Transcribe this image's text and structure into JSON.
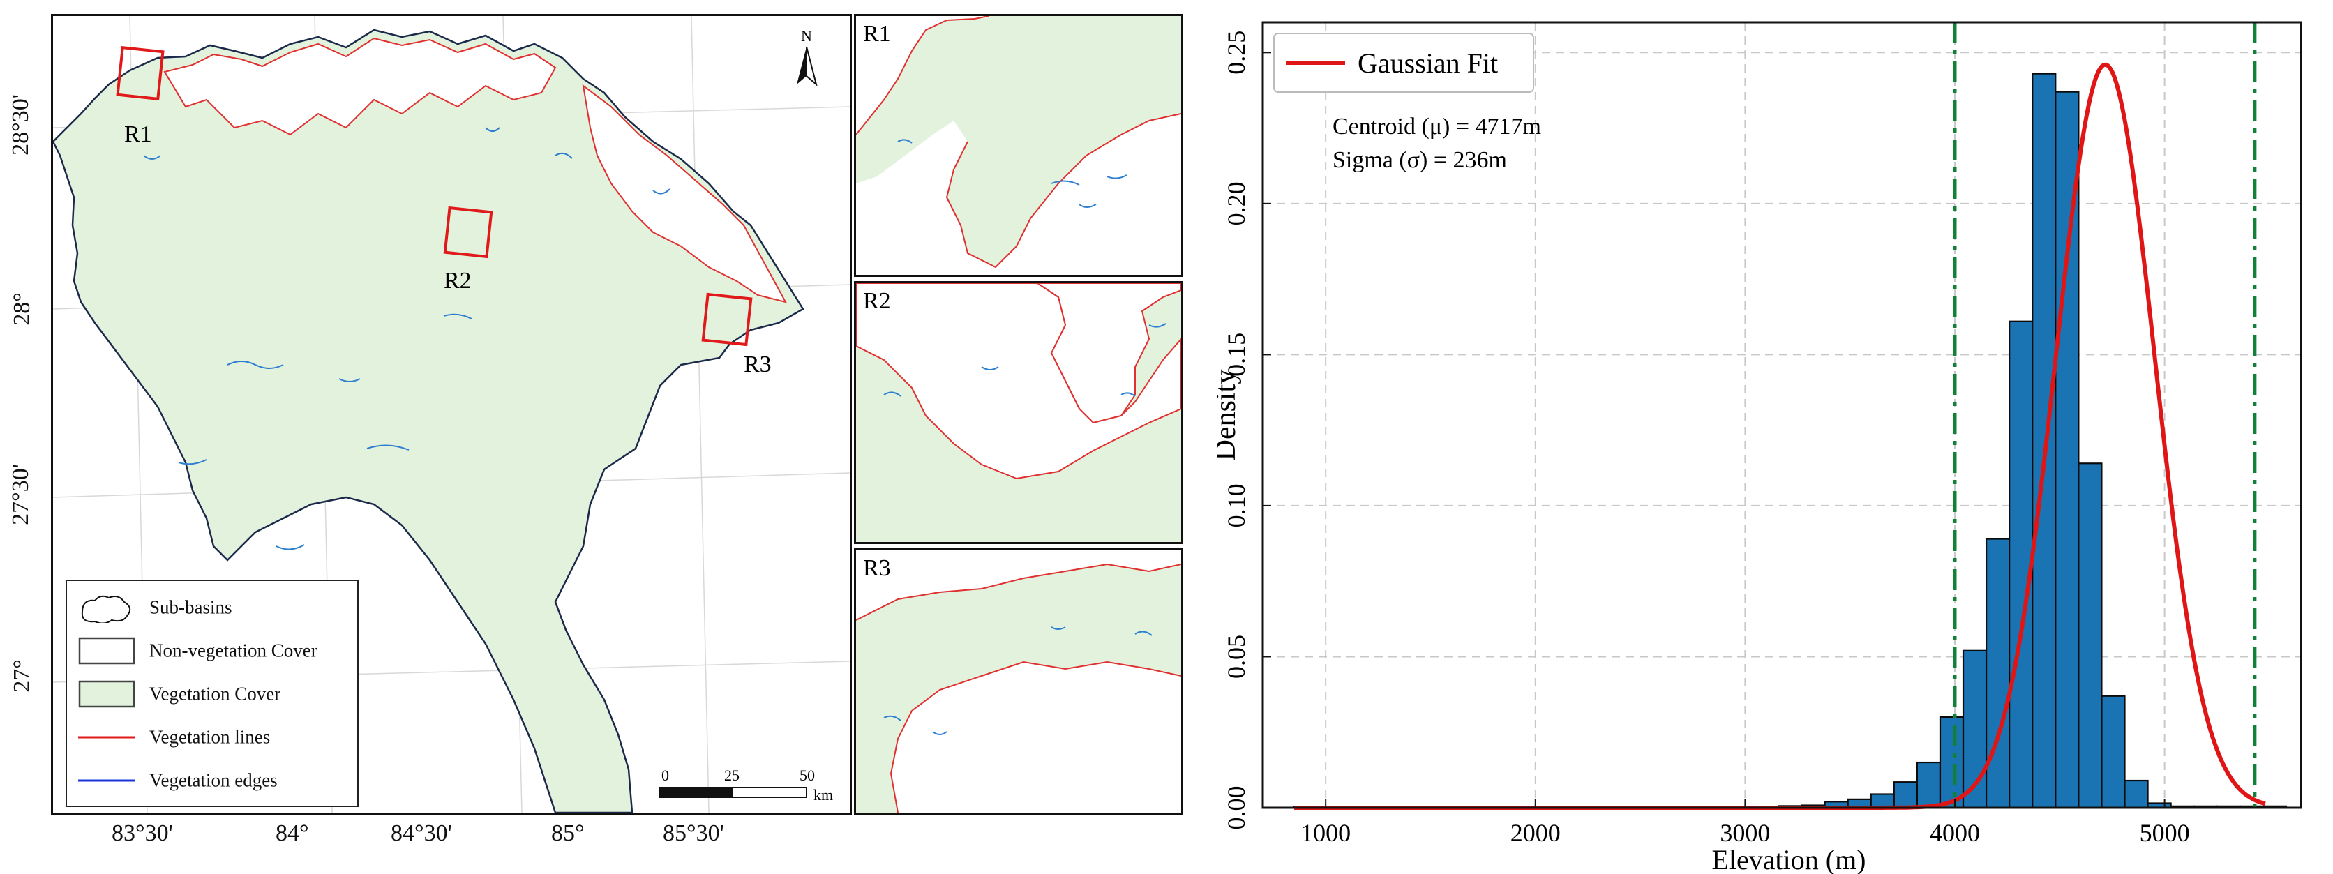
{
  "map": {
    "north_label": "N",
    "lat_labels": [
      "28°30'",
      "28°",
      "27°30'",
      "27°"
    ],
    "lon_labels": [
      "83°30'",
      "84°",
      "84°30'",
      "85°",
      "85°30'"
    ],
    "region_labels": [
      "R1",
      "R2",
      "R3"
    ],
    "scale": {
      "ticks": [
        "0",
        "25",
        "50"
      ],
      "unit": "km"
    },
    "legend": [
      {
        "label": "Sub-basins",
        "symbol": "sub-basin-outline"
      },
      {
        "label": "Non-vegetation Cover",
        "symbol": "empty-box"
      },
      {
        "label": "Vegetation Cover",
        "symbol": "green-box"
      },
      {
        "label": "Vegetation lines",
        "symbol": "red-line"
      },
      {
        "label": "Vegetation edges",
        "symbol": "blue-line"
      }
    ],
    "colors": {
      "vegetation": "#e2f2dc",
      "line": "#e03030",
      "edge": "#2f7fd0",
      "box": "#e01a1a"
    }
  },
  "insets": [
    {
      "label": "R1"
    },
    {
      "label": "R2"
    },
    {
      "label": "R3"
    }
  ],
  "chart_data": {
    "type": "bar",
    "xlabel": "Elevation (m)",
    "ylabel": "Density",
    "xlim": [
      700,
      5650
    ],
    "ylim": [
      0,
      0.26
    ],
    "xticks": [
      1000,
      2000,
      3000,
      4000,
      5000
    ],
    "yticks": [
      0.0,
      0.05,
      0.1,
      0.15,
      0.2,
      0.25
    ],
    "ytick_labels": [
      "0.00",
      "0.05",
      "0.10",
      "0.15",
      "0.20",
      "0.25"
    ],
    "grid": true,
    "legend_position": "top-left",
    "series": [
      {
        "name": "",
        "kind": "histogram",
        "bin_width": 110,
        "bin_starts": [
          850,
          960,
          1070,
          1180,
          1290,
          1400,
          1510,
          1620,
          1730,
          1840,
          1950,
          2060,
          2170,
          2280,
          2390,
          2500,
          2610,
          2720,
          2830,
          2940,
          3050,
          3160,
          3270,
          3380,
          3490,
          3600,
          3710,
          3820,
          3930,
          4040,
          4150,
          4260,
          4370,
          4480,
          4590,
          4700,
          4810,
          4920,
          5030,
          5140,
          5250,
          5360,
          5470
        ],
        "values": [
          0.0003,
          0.0003,
          0.0003,
          0.0003,
          0.0003,
          0.0003,
          0.0003,
          0.0003,
          0.0003,
          0.0003,
          0.0003,
          0.0003,
          0.0003,
          0.0003,
          0.0003,
          0.0003,
          0.0003,
          0.0003,
          0.0003,
          0.0003,
          0.0003,
          0.0006,
          0.0008,
          0.002,
          0.0028,
          0.0045,
          0.0085,
          0.015,
          0.03,
          0.052,
          0.089,
          0.161,
          0.243,
          0.237,
          0.114,
          0.037,
          0.009,
          0.0015,
          0.0005,
          0.0005,
          0.0005,
          0.0005,
          0.0005
        ],
        "color": "#1a73b3"
      },
      {
        "name": "Gaussian Fit",
        "kind": "line",
        "mu": 4717,
        "sigma": 236,
        "peak": 0.246,
        "color": "#e01515"
      }
    ],
    "vlines": [
      {
        "x": 4000,
        "style": "dash-dot",
        "color": "#13803a"
      },
      {
        "x": 5430,
        "style": "dash-dot",
        "color": "#13803a"
      }
    ],
    "annotations": [
      "Centroid (μ) = 4717m",
      "Sigma (σ) = 236m"
    ]
  }
}
